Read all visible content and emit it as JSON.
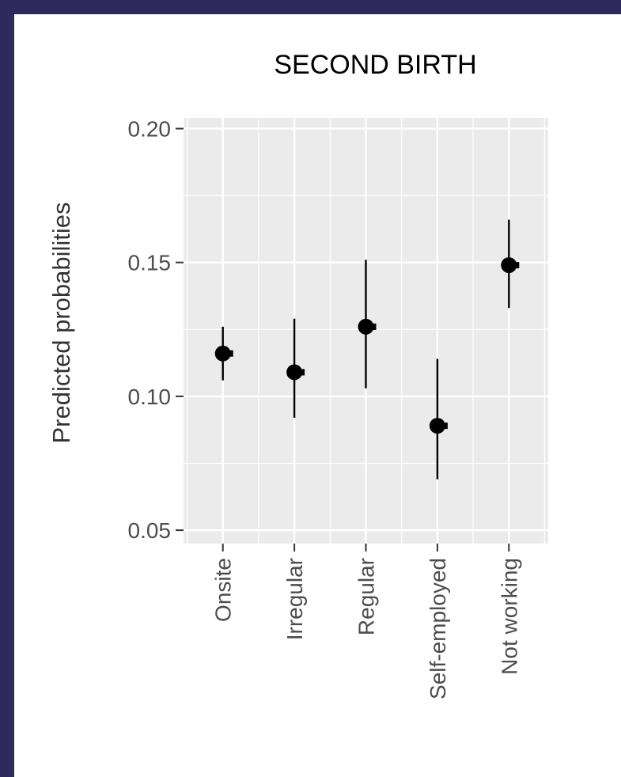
{
  "chart_data": {
    "type": "scatter",
    "subtype": "point-range",
    "title": "SECOND BIRTH",
    "xlabel": "",
    "ylabel": "Predicted probabilities",
    "categories": [
      "Onsite",
      "Irregular",
      "Regular",
      "Self-employed",
      "Not working"
    ],
    "estimates": [
      0.116,
      0.109,
      0.126,
      0.089,
      0.149
    ],
    "lower": [
      0.106,
      0.092,
      0.103,
      0.069,
      0.133
    ],
    "upper": [
      0.126,
      0.129,
      0.151,
      0.114,
      0.166
    ],
    "ylim": [
      0.045,
      0.204
    ],
    "yticks": [
      0.05,
      0.1,
      0.15,
      0.2
    ],
    "ytick_labels": [
      "0.05",
      "0.10",
      "0.15",
      "0.20"
    ],
    "grid": true,
    "legend": "none"
  },
  "colors": {
    "background": "#2f2a5e",
    "panel": "#ffffff",
    "plot_background": "#ebebeb",
    "grid": "#ffffff",
    "point": "#000000",
    "tick_text": "#4d4d4d",
    "axis_title": "#333333"
  }
}
